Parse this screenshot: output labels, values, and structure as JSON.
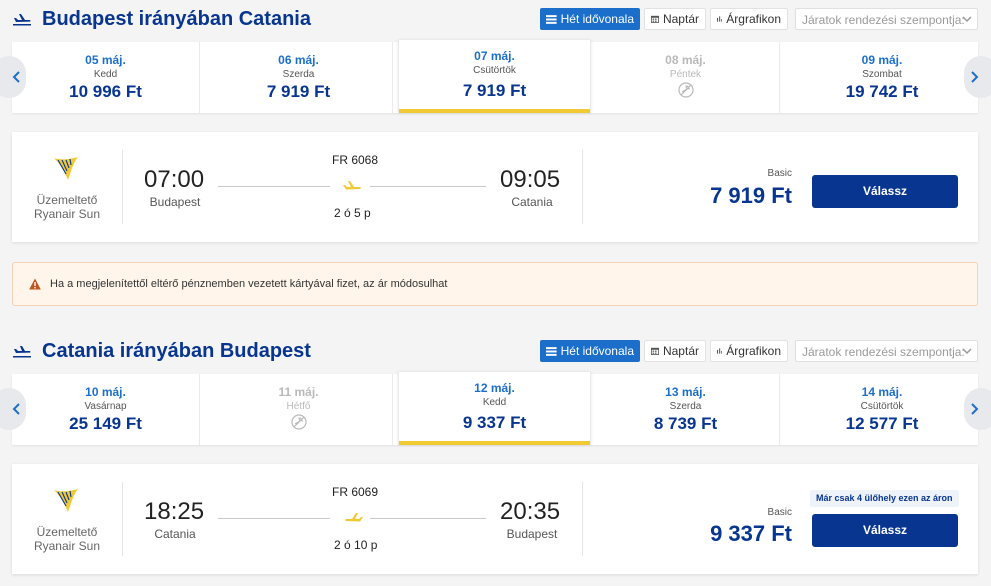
{
  "toolbar": {
    "week_view_label": "Hét idővonala",
    "calendar_label": "Naptár",
    "price_graph_label": "Árgrafikon",
    "sort_placeholder": "Járatok rendezési szempontja:"
  },
  "outbound": {
    "title": "Budapest irányában Catania",
    "dates": [
      {
        "date": "05 máj.",
        "weekday": "Kedd",
        "price": "10 996 Ft"
      },
      {
        "date": "06 máj.",
        "weekday": "Szerda",
        "price": "7 919 Ft"
      },
      {
        "date": "07 máj.",
        "weekday": "Csütörtök",
        "price": "7 919 Ft"
      },
      {
        "date": "08 máj.",
        "weekday": "Péntek",
        "price": ""
      },
      {
        "date": "09 máj.",
        "weekday": "Szombat",
        "price": "19 742 Ft"
      }
    ],
    "flight": {
      "operator_prefix": "Üzemeltető",
      "operator_name": "Ryanair Sun",
      "flight_number": "FR 6068",
      "depart_time": "07:00",
      "depart_city": "Budapest",
      "arrive_time": "09:05",
      "arrive_city": "Catania",
      "duration": "2 ó 5 p",
      "fare_type": "Basic",
      "price": "7 919 Ft",
      "select_label": "Válassz"
    }
  },
  "alert": {
    "text": "Ha a megjelenítettől eltérő pénznemben vezetett kártyával fizet, az ár módosulhat"
  },
  "inbound": {
    "title": "Catania irányában Budapest",
    "dates": [
      {
        "date": "10 máj.",
        "weekday": "Vasárnap",
        "price": "25 149 Ft"
      },
      {
        "date": "11 máj.",
        "weekday": "Hétfő",
        "price": ""
      },
      {
        "date": "12 máj.",
        "weekday": "Kedd",
        "price": "9 337 Ft"
      },
      {
        "date": "13 máj.",
        "weekday": "Szerda",
        "price": "8 739 Ft"
      },
      {
        "date": "14 máj.",
        "weekday": "Csütörtök",
        "price": "12 577 Ft"
      }
    ],
    "flight": {
      "operator_prefix": "Üzemeltető",
      "operator_name": "Ryanair Sun",
      "flight_number": "FR 6069",
      "depart_time": "18:25",
      "depart_city": "Catania",
      "arrive_time": "20:35",
      "arrive_city": "Budapest",
      "duration": "2 ó 10 p",
      "fare_type": "Basic",
      "price": "9 337 Ft",
      "select_label": "Válassz",
      "seats_badge": "Már csak 4 ülőhely ezen az áron"
    }
  },
  "colors": {
    "brand_blue": "#073590",
    "accent_blue": "#1b6fcb",
    "yellow": "#f1c933"
  }
}
